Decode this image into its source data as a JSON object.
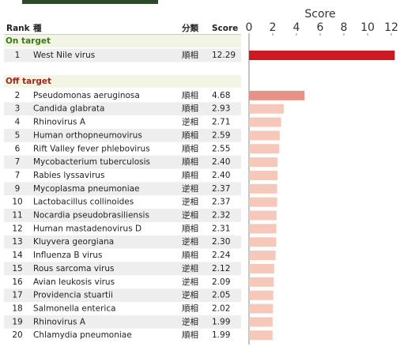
{
  "chart_data": {
    "type": "bar",
    "xlabel": "Score",
    "headers": [
      "Rank",
      "種",
      "分類",
      "Score"
    ],
    "xlim": [
      0,
      12
    ],
    "xticks": [
      0,
      2,
      4,
      6,
      8,
      10,
      12
    ],
    "groups": [
      {
        "name": "On target",
        "color": "#3d7a12",
        "rows": [
          {
            "rank": 1,
            "name": "West Nile virus",
            "class": "順相",
            "value": 12.29,
            "value_label": "12.29",
            "color": "#cc1a22"
          }
        ]
      },
      {
        "name": "Off target",
        "color": "#a3281c",
        "rows": [
          {
            "rank": 2,
            "name": "Pseudomonas aeruginosa",
            "class": "順相",
            "value": 4.68,
            "value_label": "4.68",
            "color": "#e89189"
          },
          {
            "rank": 3,
            "name": "Candida glabrata",
            "class": "順相",
            "value": 2.93,
            "value_label": "2.93",
            "color": "#f6c8ba"
          },
          {
            "rank": 4,
            "name": "Rhinovirus A",
            "class": "逆相",
            "value": 2.71,
            "value_label": "2.71",
            "color": "#f6c8ba"
          },
          {
            "rank": 5,
            "name": "Human orthopneumovirus",
            "class": "順相",
            "value": 2.59,
            "value_label": "2.59",
            "color": "#f6c8ba"
          },
          {
            "rank": 6,
            "name": "Rift Valley fever phlebovirus",
            "class": "順相",
            "value": 2.55,
            "value_label": "2.55",
            "color": "#f6c8ba"
          },
          {
            "rank": 7,
            "name": "Mycobacterium tuberculosis",
            "class": "順相",
            "value": 2.4,
            "value_label": "2.40",
            "color": "#f6c8ba"
          },
          {
            "rank": 7,
            "name": "Rabies lyssavirus",
            "class": "順相",
            "value": 2.4,
            "value_label": "2.40",
            "color": "#f6c8ba"
          },
          {
            "rank": 9,
            "name": "Mycoplasma pneumoniae",
            "class": "逆相",
            "value": 2.37,
            "value_label": "2.37",
            "color": "#f6c8ba"
          },
          {
            "rank": 10,
            "name": "Lactobacillus collinoides",
            "class": "逆相",
            "value": 2.37,
            "value_label": "2.37",
            "color": "#f6c8ba"
          },
          {
            "rank": 11,
            "name": "Nocardia pseudobrasiliensis",
            "class": "逆相",
            "value": 2.32,
            "value_label": "2.32",
            "color": "#f6c8ba"
          },
          {
            "rank": 12,
            "name": "Human mastadenovirus D",
            "class": "順相",
            "value": 2.31,
            "value_label": "2.31",
            "color": "#f6c8ba"
          },
          {
            "rank": 13,
            "name": "Kluyvera georgiana",
            "class": "逆相",
            "value": 2.3,
            "value_label": "2.30",
            "color": "#f6c8ba"
          },
          {
            "rank": 14,
            "name": "Influenza B virus",
            "class": "順相",
            "value": 2.24,
            "value_label": "2.24",
            "color": "#f6c8ba"
          },
          {
            "rank": 15,
            "name": "Rous sarcoma virus",
            "class": "逆相",
            "value": 2.12,
            "value_label": "2.12",
            "color": "#f6c8ba"
          },
          {
            "rank": 16,
            "name": "Avian leukosis virus",
            "class": "逆相",
            "value": 2.09,
            "value_label": "2.09",
            "color": "#f6c8ba"
          },
          {
            "rank": 17,
            "name": "Providencia stuartii",
            "class": "逆相",
            "value": 2.05,
            "value_label": "2.05",
            "color": "#f6c8ba"
          },
          {
            "rank": 18,
            "name": "Salmonella enterica",
            "class": "順相",
            "value": 2.02,
            "value_label": "2.02",
            "color": "#f6c8ba"
          },
          {
            "rank": 19,
            "name": "Rhinovirus A",
            "class": "逆相",
            "value": 1.99,
            "value_label": "1.99",
            "color": "#f6c8ba"
          },
          {
            "rank": 20,
            "name": "Chlamydia pneumoniae",
            "class": "順相",
            "value": 1.99,
            "value_label": "1.99",
            "color": "#f6c8ba"
          }
        ]
      }
    ]
  }
}
